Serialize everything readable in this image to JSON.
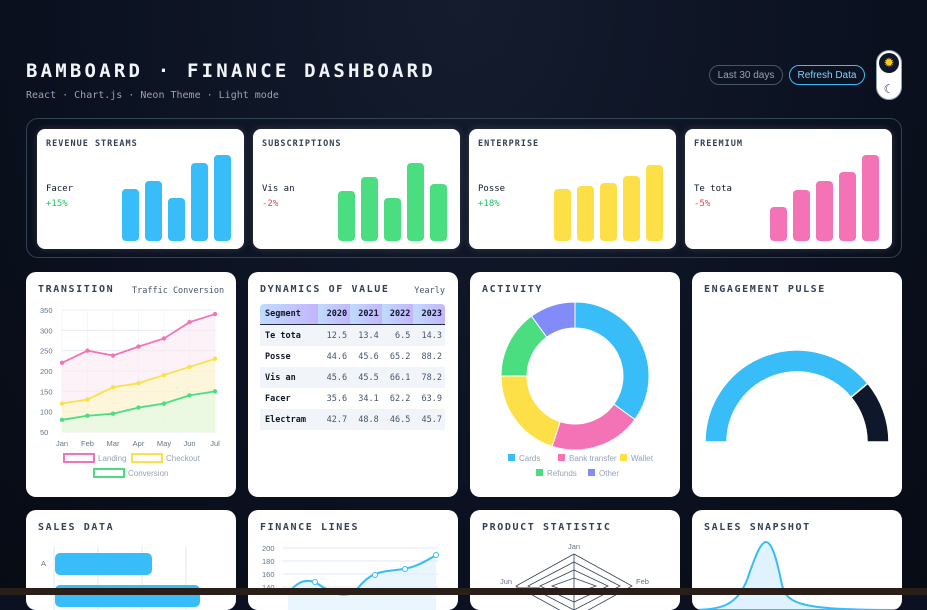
{
  "header": {
    "title": "BAMBOARD · FINANCE DASHBOARD",
    "subtitle": "React · Chart.js · Neon Theme · Light mode",
    "range_label": "Last 30 days",
    "refresh_label": "Refresh Data",
    "sun_icon": "sun-icon",
    "moon_icon": "moon-icon"
  },
  "kpis": [
    {
      "title": "REVENUE STREAMS",
      "label": "Facer",
      "delta": "+15%",
      "delta_color": "#22c55e",
      "color": "#38bdf8",
      "values": [
        52,
        60,
        43,
        78,
        86
      ]
    },
    {
      "title": "SUBSCRIPTIONS",
      "label": "Vis an",
      "delta": "-2%",
      "delta_color": "#ef4444",
      "color": "#4ade80",
      "values": [
        50,
        64,
        43,
        78,
        57
      ]
    },
    {
      "title": "ENTERPRISE",
      "label": "Posse",
      "delta": "+18%",
      "delta_color": "#22c55e",
      "color": "#fde047",
      "values": [
        52,
        55,
        58,
        65,
        76
      ]
    },
    {
      "title": "FREEMIUM",
      "label": "Te tota",
      "delta": "-5%",
      "delta_color": "#ef4444",
      "color": "#f472b6",
      "values": [
        34,
        51,
        60,
        69,
        86
      ]
    }
  ],
  "transition": {
    "title": "TRANSITION",
    "subtitle": "Traffic Conversion"
  },
  "dynamics": {
    "title": "DYNAMICS OF VALUE",
    "subtitle": "Yearly",
    "columns": [
      "Segment",
      "2020",
      "2021",
      "2022",
      "2023"
    ],
    "rows": [
      [
        "Te tota",
        "12.5",
        "13.4",
        "6.5",
        "14.3"
      ],
      [
        "Posse",
        "44.6",
        "45.6",
        "65.2",
        "88.2"
      ],
      [
        "Vis an",
        "45.6",
        "45.5",
        "66.1",
        "78.2"
      ],
      [
        "Facer",
        "35.6",
        "34.1",
        "62.2",
        "63.9"
      ],
      [
        "Electram",
        "42.7",
        "48.8",
        "46.5",
        "45.7"
      ]
    ]
  },
  "activity": {
    "title": "ACTIVITY"
  },
  "engagement": {
    "title": "ENGAGEMENT PULSE"
  },
  "sales_data": {
    "title": "SALES DATA"
  },
  "finance_lines": {
    "title": "FINANCE LINES"
  },
  "product_statistic": {
    "title": "PRODUCT STATISTIC"
  },
  "sales_snapshot": {
    "title": "SALES SNAPSHOT"
  },
  "chart_data": [
    {
      "type": "line",
      "name": "transition",
      "x": [
        "Jan",
        "Feb",
        "Mar",
        "Apr",
        "May",
        "Jun",
        "Jul"
      ],
      "ylim": [
        50,
        350
      ],
      "yticks": [
        "350",
        "300",
        "250",
        "200",
        "150",
        "100",
        "50"
      ],
      "series": [
        {
          "name": "Landing",
          "color": "#f472b6",
          "values": [
            220,
            250,
            238,
            260,
            280,
            320,
            340
          ]
        },
        {
          "name": "Checkout",
          "color": "#fde047",
          "values": [
            120,
            130,
            160,
            170,
            190,
            210,
            230
          ]
        },
        {
          "name": "Conversion",
          "color": "#4ade80",
          "values": [
            80,
            90,
            95,
            110,
            120,
            140,
            150
          ]
        }
      ],
      "legend": "bottom"
    },
    {
      "type": "pie",
      "name": "activity",
      "labels": [
        "Cards",
        "Bank transfer",
        "Wallet",
        "Refunds",
        "Other"
      ],
      "colors": [
        "#38bdf8",
        "#f472b6",
        "#fde047",
        "#4ade80",
        "#818cf8"
      ],
      "values": [
        35,
        20,
        20,
        15,
        10
      ],
      "legend": "bottom"
    },
    {
      "type": "pie",
      "name": "engagement",
      "colors": [
        "#38bdf8",
        "#0f172a"
      ],
      "values": [
        78,
        22
      ]
    },
    {
      "type": "bar",
      "name": "sales-data",
      "categories": [
        "A"
      ],
      "color": "#38bdf8",
      "values": [
        60
      ]
    },
    {
      "type": "line",
      "name": "finance-lines",
      "yticks": [
        "200",
        "180",
        "160",
        "140"
      ],
      "ylim": [
        140,
        200
      ],
      "color": "#38bdf8",
      "values": [
        130,
        150,
        120,
        130,
        160,
        170,
        190
      ]
    },
    {
      "type": "radar",
      "name": "product-statistic",
      "labels": [
        "Jan",
        "Feb",
        "Jun"
      ]
    },
    {
      "type": "area",
      "name": "sales-snapshot",
      "color": "#38bdf8"
    }
  ]
}
